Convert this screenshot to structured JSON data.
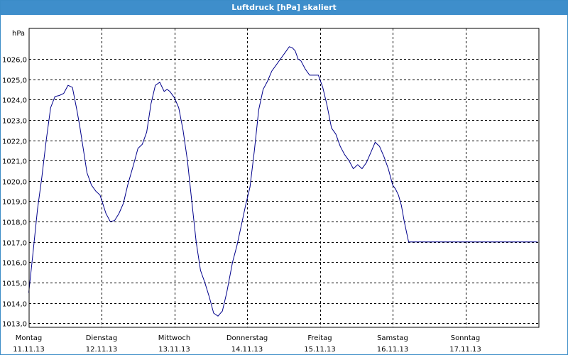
{
  "window": {
    "title": "Luftdruck [hPa] skaliert"
  },
  "chart_data": {
    "type": "line",
    "title": "Luftdruck [hPa] skaliert",
    "ylabel": "hPa",
    "ylim": [
      1012.8,
      1027.5
    ],
    "yticks": [
      {
        "value": 1013,
        "label": "1013,0"
      },
      {
        "value": 1014,
        "label": "1014,0"
      },
      {
        "value": 1015,
        "label": "1015,0"
      },
      {
        "value": 1016,
        "label": "1016,0"
      },
      {
        "value": 1017,
        "label": "1017,0"
      },
      {
        "value": 1018,
        "label": "1018,0"
      },
      {
        "value": 1019,
        "label": "1019,0"
      },
      {
        "value": 1020,
        "label": "1020,0"
      },
      {
        "value": 1021,
        "label": "1021,0"
      },
      {
        "value": 1022,
        "label": "1022,0"
      },
      {
        "value": 1023,
        "label": "1023,0"
      },
      {
        "value": 1024,
        "label": "1024,0"
      },
      {
        "value": 1025,
        "label": "1025,0"
      },
      {
        "value": 1026,
        "label": "1026,0"
      }
    ],
    "days": [
      {
        "name": "Montag",
        "date": "11.11.13"
      },
      {
        "name": "Dienstag",
        "date": "12.11.13"
      },
      {
        "name": "Mittwoch",
        "date": "13.11.13"
      },
      {
        "name": "Donnerstag",
        "date": "14.11.13"
      },
      {
        "name": "Freitag",
        "date": "15.11.13"
      },
      {
        "name": "Samstag",
        "date": "16.11.13"
      },
      {
        "name": "Sonntag",
        "date": "17.11.13"
      }
    ],
    "xlim_days": [
      0,
      7
    ],
    "grid": true,
    "line_color": "#00008b",
    "series": [
      {
        "x": [
          0,
          0.06,
          0.12,
          0.18,
          0.24,
          0.3,
          0.36,
          0.42,
          0.48,
          0.54,
          0.6,
          0.66,
          0.7,
          0.74,
          0.8,
          0.86,
          0.92,
          0.98,
          1.06,
          1.12,
          1.18,
          1.24,
          1.3,
          1.36,
          1.44,
          1.5,
          1.56,
          1.62,
          1.68,
          1.74,
          1.8,
          1.86,
          1.9,
          1.94,
          2.0,
          2.06,
          2.12,
          2.18,
          2.24,
          2.3,
          2.36,
          2.42,
          2.48,
          2.54,
          2.6,
          2.66,
          2.72,
          2.8,
          2.86,
          2.92,
          2.98,
          3.04,
          3.1,
          3.16,
          3.22,
          3.28,
          3.34,
          3.4,
          3.46,
          3.52,
          3.58,
          3.62,
          3.66,
          3.7,
          3.74,
          3.8,
          3.86,
          3.92,
          3.98,
          4.04,
          4.1,
          4.16,
          4.22,
          4.28,
          4.34,
          4.4,
          4.46,
          4.52,
          4.58,
          4.64,
          4.7,
          4.76,
          4.82,
          4.88,
          4.94,
          5.0,
          5.04,
          5.08,
          5.12,
          5.16,
          5.22,
          5.28,
          5.34,
          5.4,
          5.46,
          5.52,
          5.58,
          5.64,
          5.7,
          5.76,
          5.82,
          5.88,
          5.94,
          6.0,
          6.04,
          6.08,
          6.12,
          6.18,
          6.24,
          6.3,
          6.36,
          6.42,
          6.48,
          6.54,
          6.6,
          6.66,
          6.72,
          6.78,
          6.84,
          6.9,
          6.96,
          7.0
        ],
        "y": [
          1014.5,
          1016.5,
          1018.6,
          1020.2,
          1022.0,
          1023.6,
          1024.15,
          1024.2,
          1024.3,
          1024.7,
          1024.6,
          1023.5,
          1022.7,
          1021.8,
          1020.4,
          1019.8,
          1019.5,
          1019.3,
          1018.4,
          1018.0,
          1018.05,
          1018.4,
          1018.9,
          1019.8,
          1020.8,
          1021.6,
          1021.8,
          1022.4,
          1023.8,
          1024.7,
          1024.85,
          1024.4,
          1024.5,
          1024.4,
          1024.1,
          1023.6,
          1022.5,
          1021.0,
          1019.0,
          1017.0,
          1015.6,
          1015.0,
          1014.3,
          1013.5,
          1013.35,
          1013.6,
          1014.5,
          1016.0,
          1016.8,
          1017.8,
          1018.8,
          1019.7,
          1021.5,
          1023.5,
          1024.5,
          1024.9,
          1025.4,
          1025.7,
          1026.0,
          1026.3,
          1026.6,
          1026.55,
          1026.4,
          1026.0,
          1025.9,
          1025.5,
          1025.2,
          1025.2,
          1025.2,
          1024.6,
          1023.7,
          1022.6,
          1022.3,
          1021.7,
          1021.3,
          1021.0,
          1020.6,
          1020.8,
          1020.6,
          1020.9,
          1021.4,
          1021.9,
          1021.7,
          1021.2,
          1020.6,
          1019.8,
          1019.6,
          1019.3,
          1018.8,
          1018.0,
          1017.0,
          1017.0,
          1017.0,
          1017.0,
          1017.0,
          1017.0,
          1017.0,
          1017.0,
          1017.0,
          1017.0,
          1017.0,
          1017.0,
          1017.0,
          1017.0,
          1017.0,
          1017.0,
          1017.0,
          1017.0,
          1017.0,
          1017.0,
          1017.0,
          1017.0,
          1017.0,
          1017.0,
          1017.0,
          1017.0,
          1017.0,
          1017.0,
          1017.0,
          1017.0,
          1017.0,
          1017.0
        ]
      }
    ]
  }
}
